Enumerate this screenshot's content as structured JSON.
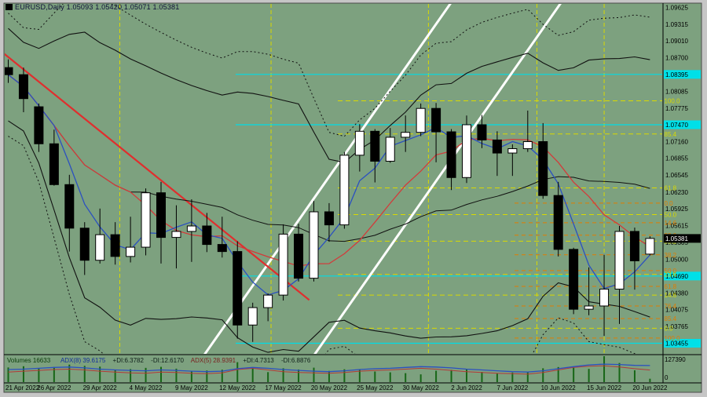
{
  "window": {
    "title_text": "EURUSD,Daily 1.05093 1.05420 1.05071 1.05381",
    "symbol": "EURUSD,Daily",
    "open": "1.05093",
    "high": "1.05420",
    "low": "1.05071",
    "close": "1.05381"
  },
  "colors": {
    "background": "#7DA17F",
    "frame": "#C6C6C6",
    "border": "#4A4A4A",
    "candle_bear": "#000000",
    "candle_bull": "#FFFFFF",
    "ma_fast": "#2B50C0",
    "ma_slow": "#D23B3B",
    "band": "#111111",
    "trendline_red": "#E02E2E",
    "channel_white": "#FFFFFF",
    "fib_major": "#D9D900",
    "fib_minor": "#E07C00",
    "vline": "#D9D900",
    "sr_line": "#00DDE6",
    "scale_text": "#000000",
    "badge_current_bg": "#000000",
    "badge_current_text": "#FFFFFF",
    "badge_sr_bg": "#00E0E8",
    "volume": "#176617",
    "adx8": "#2B50C0",
    "adx5": "#B43838"
  },
  "price_scale": {
    "ticks": [
      "1.09625",
      "1.09315",
      "1.09010",
      "1.08700",
      "1.08395",
      "1.08085",
      "1.07775",
      "1.07470",
      "1.07160",
      "1.06855",
      "1.06545",
      "1.06230",
      "1.05925",
      "1.05615",
      "1.05305",
      "1.05000",
      "1.04690",
      "1.04380",
      "1.04075",
      "1.03765",
      "1.03455"
    ],
    "current_price": "1.05381",
    "sr_prices": [
      "1.08395",
      "1.07470",
      "1.04690",
      "1.03455"
    ]
  },
  "time_scale": {
    "dates": [
      "21 Apr 2022",
      "26 Apr 2022",
      "29 Apr 2022",
      "4 May 2022",
      "9 May 2022",
      "12 May 2022",
      "17 May 2022",
      "20 May 2022",
      "25 May 2022",
      "30 May 2022",
      "2 Jun 2022",
      "7 Jun 2022",
      "10 Jun 2022",
      "15 Jun 2022",
      "20 Jun 2022"
    ],
    "label_every": 3
  },
  "indicator_panel": {
    "volumes_label": "Volumes 16633",
    "adx8_label": "ADX(8) 39.6175",
    "plus_di8": "+DI:6.3782",
    "minus_di8": "-DI:12.6170",
    "adx5_label": "ADX(5) 28.9391",
    "plus_di5": "+DI:4.7313",
    "minus_di5": "-DI:6.8876",
    "scale_max": "127390",
    "scale_min": "0"
  },
  "fibonacci": {
    "major": {
      "levels": [
        {
          "label": "100.0",
          "price": 1.0791
        },
        {
          "label": "85.4",
          "price": 1.073
        },
        {
          "label": "61.8",
          "price": 1.0631
        },
        {
          "label": "50.0",
          "price": 1.0582
        },
        {
          "label": "38.2",
          "price": 1.0533
        },
        {
          "label": "23.6",
          "price": 1.0472
        },
        {
          "label": "14.6",
          "price": 1.0434
        },
        {
          "label": "0.0",
          "price": 1.0373
        }
      ]
    },
    "minor": {
      "levels": [
        {
          "label": "0.0",
          "price": 1.0603
        },
        {
          "label": "14.6",
          "price": 1.0567
        },
        {
          "label": "23.6",
          "price": 1.0544
        },
        {
          "label": "38.2",
          "price": 1.0508
        },
        {
          "label": "50.0",
          "price": 1.0479
        },
        {
          "label": "61.8",
          "price": 1.045
        },
        {
          "label": "76.4",
          "price": 1.0414
        },
        {
          "label": "85.4",
          "price": 1.0391
        },
        {
          "label": "100.0",
          "price": 1.0355
        }
      ]
    }
  },
  "annotations": {
    "red_trendline": {
      "i1": -0.6,
      "p1": 1.0885,
      "i2": 19.7,
      "p2": 1.0425
    },
    "white_channel": [
      {
        "i1": 12.7,
        "p1": 1.0319,
        "i2": 29.1,
        "p2": 1.0976
      },
      {
        "i1": 19.9,
        "p1": 1.0319,
        "i2": 36.3,
        "p2": 1.0976
      }
    ],
    "vlines_index": [
      7.3,
      17.2,
      27.5,
      34.6,
      39.0
    ]
  },
  "chart_data": {
    "type": "candlestick",
    "symbol": "EURUSD",
    "timeframe": "Daily",
    "title": "EURUSD,Daily",
    "y_range": {
      "top": 1.09625,
      "bottom": 1.03455
    },
    "legend_position": "none",
    "grid": "off",
    "candles": [
      {
        "d": "21 Apr",
        "o": 1.0852,
        "h": 1.0867,
        "l": 1.0824,
        "c": 1.0839,
        "v": 72000
      },
      {
        "d": "22 Apr",
        "o": 1.0839,
        "h": 1.0852,
        "l": 1.077,
        "c": 1.0795,
        "v": 78000
      },
      {
        "d": "25 Apr",
        "o": 1.078,
        "h": 1.0786,
        "l": 1.0697,
        "c": 1.0712,
        "v": 69000
      },
      {
        "d": "26 Apr",
        "o": 1.0712,
        "h": 1.0738,
        "l": 1.0635,
        "c": 1.0637,
        "v": 74000
      },
      {
        "d": "27 Apr",
        "o": 1.0637,
        "h": 1.0655,
        "l": 1.0514,
        "c": 1.0557,
        "v": 86000
      },
      {
        "d": "28 Apr",
        "o": 1.0557,
        "h": 1.0568,
        "l": 1.0471,
        "c": 1.0498,
        "v": 80000
      },
      {
        "d": "29 Apr",
        "o": 1.0498,
        "h": 1.0593,
        "l": 1.0492,
        "c": 1.0545,
        "v": 76000
      },
      {
        "d": "2 May",
        "o": 1.0545,
        "h": 1.0568,
        "l": 1.049,
        "c": 1.0505,
        "v": 58000
      },
      {
        "d": "3 May",
        "o": 1.0505,
        "h": 1.0578,
        "l": 1.0494,
        "c": 1.0522,
        "v": 64000
      },
      {
        "d": "4 May",
        "o": 1.0522,
        "h": 1.063,
        "l": 1.0507,
        "c": 1.0622,
        "v": 70000
      },
      {
        "d": "5 May",
        "o": 1.0622,
        "h": 1.0642,
        "l": 1.0492,
        "c": 1.054,
        "v": 75000
      },
      {
        "d": "6 May",
        "o": 1.054,
        "h": 1.0599,
        "l": 1.0483,
        "c": 1.0551,
        "v": 66000
      },
      {
        "d": "9 May",
        "o": 1.0551,
        "h": 1.061,
        "l": 1.0495,
        "c": 1.0561,
        "v": 52000
      },
      {
        "d": "10 May",
        "o": 1.0561,
        "h": 1.0585,
        "l": 1.0513,
        "c": 1.0527,
        "v": 57000
      },
      {
        "d": "11 May",
        "o": 1.0527,
        "h": 1.0578,
        "l": 1.0503,
        "c": 1.0514,
        "v": 61000
      },
      {
        "d": "12 May",
        "o": 1.0514,
        "h": 1.0533,
        "l": 1.0354,
        "c": 1.0379,
        "v": 98000
      },
      {
        "d": "13 May",
        "o": 1.0379,
        "h": 1.042,
        "l": 1.0348,
        "c": 1.0411,
        "v": 73000
      },
      {
        "d": "16 May",
        "o": 1.0411,
        "h": 1.0437,
        "l": 1.0386,
        "c": 1.0434,
        "v": 49000
      },
      {
        "d": "17 May",
        "o": 1.0434,
        "h": 1.0564,
        "l": 1.0424,
        "c": 1.0546,
        "v": 68000
      },
      {
        "d": "18 May",
        "o": 1.0546,
        "h": 1.0565,
        "l": 1.0459,
        "c": 1.0465,
        "v": 62000
      },
      {
        "d": "19 May",
        "o": 1.0465,
        "h": 1.0607,
        "l": 1.0459,
        "c": 1.0587,
        "v": 71000
      },
      {
        "d": "20 May",
        "o": 1.0587,
        "h": 1.0603,
        "l": 1.0532,
        "c": 1.0563,
        "v": 55000
      },
      {
        "d": "23 May",
        "o": 1.0563,
        "h": 1.0697,
        "l": 1.0556,
        "c": 1.0691,
        "v": 63000
      },
      {
        "d": "24 May",
        "o": 1.0691,
        "h": 1.0748,
        "l": 1.0661,
        "c": 1.0735,
        "v": 60000
      },
      {
        "d": "25 May",
        "o": 1.0735,
        "h": 1.0739,
        "l": 1.0641,
        "c": 1.068,
        "v": 52000
      },
      {
        "d": "26 May",
        "o": 1.068,
        "h": 1.0741,
        "l": 1.0677,
        "c": 1.0724,
        "v": 48000
      },
      {
        "d": "27 May",
        "o": 1.0724,
        "h": 1.0764,
        "l": 1.0697,
        "c": 1.0733,
        "v": 44000
      },
      {
        "d": "30 May",
        "o": 1.0733,
        "h": 1.0786,
        "l": 1.0726,
        "c": 1.0777,
        "v": 38000
      },
      {
        "d": "31 May",
        "o": 1.0777,
        "h": 1.0787,
        "l": 1.0678,
        "c": 1.0734,
        "v": 56000
      },
      {
        "d": "1 Jun",
        "o": 1.0734,
        "h": 1.0739,
        "l": 1.0627,
        "c": 1.065,
        "v": 60000
      },
      {
        "d": "2 Jun",
        "o": 1.065,
        "h": 1.0764,
        "l": 1.064,
        "c": 1.0747,
        "v": 64000
      },
      {
        "d": "3 Jun",
        "o": 1.0747,
        "h": 1.0765,
        "l": 1.0704,
        "c": 1.0719,
        "v": 50000
      },
      {
        "d": "6 Jun",
        "o": 1.0719,
        "h": 1.0735,
        "l": 1.0653,
        "c": 1.0695,
        "v": 42000
      },
      {
        "d": "7 Jun",
        "o": 1.0695,
        "h": 1.0711,
        "l": 1.0653,
        "c": 1.0703,
        "v": 47000
      },
      {
        "d": "8 Jun",
        "o": 1.0703,
        "h": 1.0773,
        "l": 1.0697,
        "c": 1.0716,
        "v": 52000
      },
      {
        "d": "9 Jun",
        "o": 1.0716,
        "h": 1.075,
        "l": 1.0611,
        "c": 1.0617,
        "v": 68000
      },
      {
        "d": "10 Jun",
        "o": 1.0617,
        "h": 1.0642,
        "l": 1.0505,
        "c": 1.0518,
        "v": 74000
      },
      {
        "d": "13 Jun",
        "o": 1.0518,
        "h": 1.0521,
        "l": 1.0399,
        "c": 1.0408,
        "v": 71000
      },
      {
        "d": "14 Jun",
        "o": 1.0408,
        "h": 1.0485,
        "l": 1.0397,
        "c": 1.0414,
        "v": 65000
      },
      {
        "d": "15 Jun",
        "o": 1.0414,
        "h": 1.0508,
        "l": 1.0359,
        "c": 1.0445,
        "v": 127390
      },
      {
        "d": "16 Jun",
        "o": 1.0445,
        "h": 1.0561,
        "l": 1.0381,
        "c": 1.0551,
        "v": 94000
      },
      {
        "d": "17 Jun",
        "o": 1.0551,
        "h": 1.0558,
        "l": 1.0444,
        "c": 1.0497,
        "v": 58000
      },
      {
        "d": "20 Jun",
        "o": 1.05093,
        "h": 1.0542,
        "l": 1.05071,
        "c": 1.05381,
        "v": 16633
      }
    ],
    "adx8": [
      30,
      31,
      33,
      35,
      36,
      34,
      31,
      29,
      28,
      27,
      29,
      28,
      26,
      25,
      26,
      32,
      35,
      33,
      30,
      28,
      26,
      25,
      27,
      30,
      32,
      33,
      35,
      37,
      36,
      34,
      31,
      29,
      27,
      25,
      24,
      27,
      32,
      37,
      41,
      43,
      42,
      40,
      39.62
    ],
    "adx5": [
      24,
      26,
      28,
      30,
      31,
      29,
      26,
      24,
      22,
      21,
      24,
      23,
      21,
      20,
      22,
      30,
      33,
      29,
      25,
      23,
      22,
      21,
      23,
      26,
      28,
      29,
      31,
      33,
      31,
      28,
      25,
      23,
      21,
      20,
      19,
      23,
      29,
      35,
      38,
      39,
      36,
      32,
      28.94
    ]
  }
}
